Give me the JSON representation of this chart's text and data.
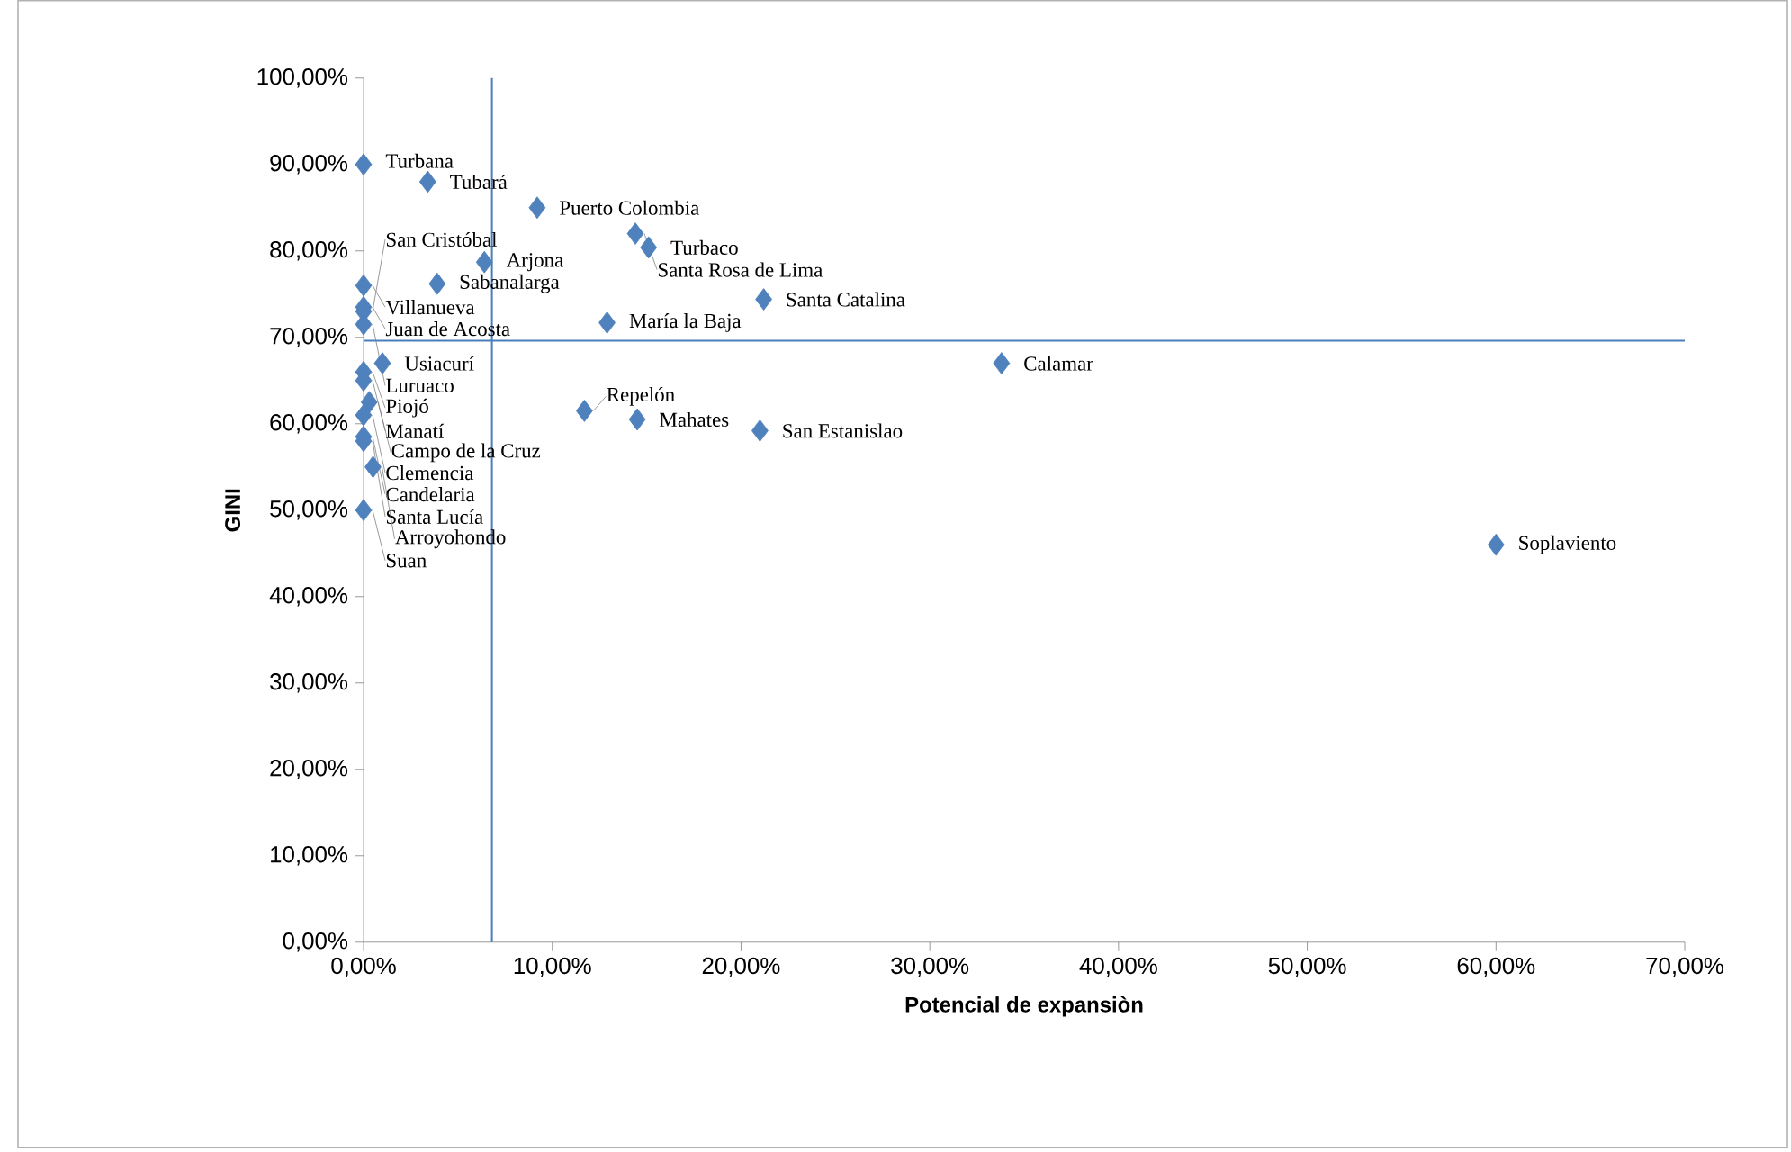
{
  "chart_data": {
    "type": "scatter",
    "xlabel": "Potencial de expansiòn",
    "ylabel": "GINI",
    "color": "#4f81bd",
    "marker": "diamond",
    "x": [
      0,
      3.4,
      9.2,
      14.4,
      15.1,
      6.4,
      3.9,
      0,
      0,
      0,
      0,
      12.9,
      21.2,
      1,
      0,
      0,
      0.3,
      0,
      0,
      0,
      0.5,
      0,
      11.7,
      14.5,
      21,
      33.8,
      60
    ],
    "values": [
      90,
      88,
      85,
      82,
      80.4,
      78.7,
      76.2,
      76,
      73.5,
      73,
      71.5,
      71.7,
      74.4,
      67,
      66,
      65,
      62.5,
      61,
      58.5,
      58,
      55,
      50,
      61.5,
      60.5,
      59.2,
      67,
      46
    ],
    "xlim": [
      0,
      70
    ],
    "ylim": [
      0,
      100
    ],
    "xticks": [
      {
        "value": 0,
        "label": "0,00%"
      },
      {
        "value": 10,
        "label": "10,00%"
      },
      {
        "value": 20,
        "label": "20,00%"
      },
      {
        "value": 30,
        "label": "30,00%"
      },
      {
        "value": 40,
        "label": "40,00%"
      },
      {
        "value": 50,
        "label": "50,00%"
      },
      {
        "value": 60,
        "label": "60,00%"
      },
      {
        "value": 70,
        "label": "70,00%"
      }
    ],
    "yticks": [
      {
        "value": 0,
        "label": "0,00%"
      },
      {
        "value": 10,
        "label": "10,00%"
      },
      {
        "value": 20,
        "label": "20,00%"
      },
      {
        "value": 30,
        "label": "30,00%"
      },
      {
        "value": 40,
        "label": "40,00%"
      },
      {
        "value": 50,
        "label": "50,00%"
      },
      {
        "value": 60,
        "label": "60,00%"
      },
      {
        "value": 70,
        "label": "70,00%"
      },
      {
        "value": 80,
        "label": "80,00%"
      },
      {
        "value": 90,
        "label": "90,00%"
      },
      {
        "value": 100,
        "label": "100,00%"
      }
    ],
    "ref_lines": [
      {
        "axis": "x",
        "value": 6.8,
        "color": "#4a7ebb"
      },
      {
        "axis": "y",
        "value": 69.6,
        "color": "#4a7ebb"
      }
    ],
    "annotations": [
      {
        "text": "Turbana",
        "x": 0,
        "y": 90
      },
      {
        "text": "Tubará",
        "x": 3.4,
        "y": 88
      },
      {
        "text": "Puerto Colombia",
        "x": 9.2,
        "y": 85
      },
      {
        "text": "Santa Rosa de Lima",
        "x": 14.4,
        "y": 82
      },
      {
        "text": "Turbaco",
        "x": 15.1,
        "y": 80.4
      },
      {
        "text": "Arjona",
        "x": 6.4,
        "y": 78.7
      },
      {
        "text": "Sabanalarga",
        "x": 3.9,
        "y": 76.2
      },
      {
        "text": "Villanueva",
        "x": 0,
        "y": 76
      },
      {
        "text": "Juan de Acosta",
        "x": 0,
        "y": 73.5
      },
      {
        "text": "San Cristóbal",
        "x": 0,
        "y": 73
      },
      {
        "text": "Luruaco",
        "x": 0,
        "y": 71.5
      },
      {
        "text": "María la Baja",
        "x": 12.9,
        "y": 71.7
      },
      {
        "text": "Santa Catalina",
        "x": 21.2,
        "y": 74.4
      },
      {
        "text": "Usiacurí",
        "x": 1,
        "y": 67
      },
      {
        "text": "Piojó",
        "x": 0,
        "y": 66
      },
      {
        "text": "Manatí",
        "x": 0,
        "y": 65
      },
      {
        "text": "Campo de la Cruz",
        "x": 0.3,
        "y": 62.5
      },
      {
        "text": "Clemencia",
        "x": 0,
        "y": 61
      },
      {
        "text": "Candelaria",
        "x": 0,
        "y": 58.5
      },
      {
        "text": "Santa Lucía",
        "x": 0,
        "y": 58
      },
      {
        "text": "Arroyohondo",
        "x": 0.5,
        "y": 55
      },
      {
        "text": "Suan",
        "x": 0,
        "y": 50
      },
      {
        "text": "Repelón",
        "x": 11.7,
        "y": 61.5
      },
      {
        "text": "Mahates",
        "x": 14.5,
        "y": 60.5
      },
      {
        "text": "San Estanislao",
        "x": 21,
        "y": 59.2
      },
      {
        "text": "Calamar",
        "x": 33.8,
        "y": 67
      },
      {
        "text": "Soplaviento",
        "x": 60,
        "y": 46
      }
    ]
  }
}
